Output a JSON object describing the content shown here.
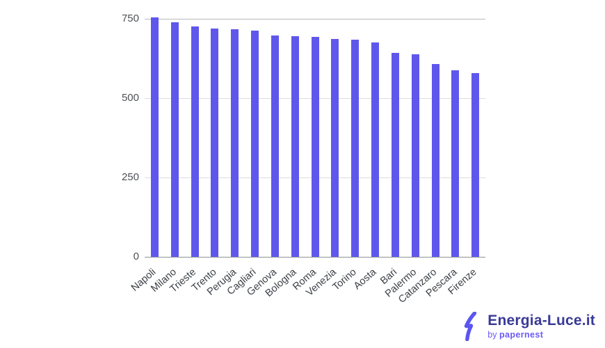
{
  "chart_data": {
    "type": "bar",
    "title": "",
    "xlabel": "",
    "ylabel": "",
    "categories": [
      "Napoli",
      "Milano",
      "Trieste",
      "Trento",
      "Perugia",
      "Cagliari",
      "Genova",
      "Bologna",
      "Roma",
      "Venezia",
      "Torino",
      "Aosta",
      "Bari",
      "Palermo",
      "Catanzaro",
      "Pescara",
      "Firenze"
    ],
    "values": [
      755,
      738,
      727,
      719,
      718,
      712,
      698,
      696,
      694,
      686,
      684,
      676,
      642,
      638,
      608,
      587,
      579
    ],
    "ylim": [
      0,
      750
    ],
    "yticks": [
      0,
      250,
      500,
      750
    ],
    "grid": true,
    "legend": false
  },
  "colors": {
    "bar": "#5f57ec",
    "grid": "#dcdcdc",
    "grid_top": "#b5b8bc",
    "baseline": "#8f9296",
    "axis_text": "#4d5157",
    "category_text": "#3c4046",
    "background": "#ffffff",
    "brand_text": "#3a3a96",
    "byline_text": "#6a5af9",
    "bolt": "#5b55f2"
  },
  "logo": {
    "brand": "Energia-Luce.it",
    "byline_prefix": "by ",
    "byline_brand": "papernest"
  }
}
